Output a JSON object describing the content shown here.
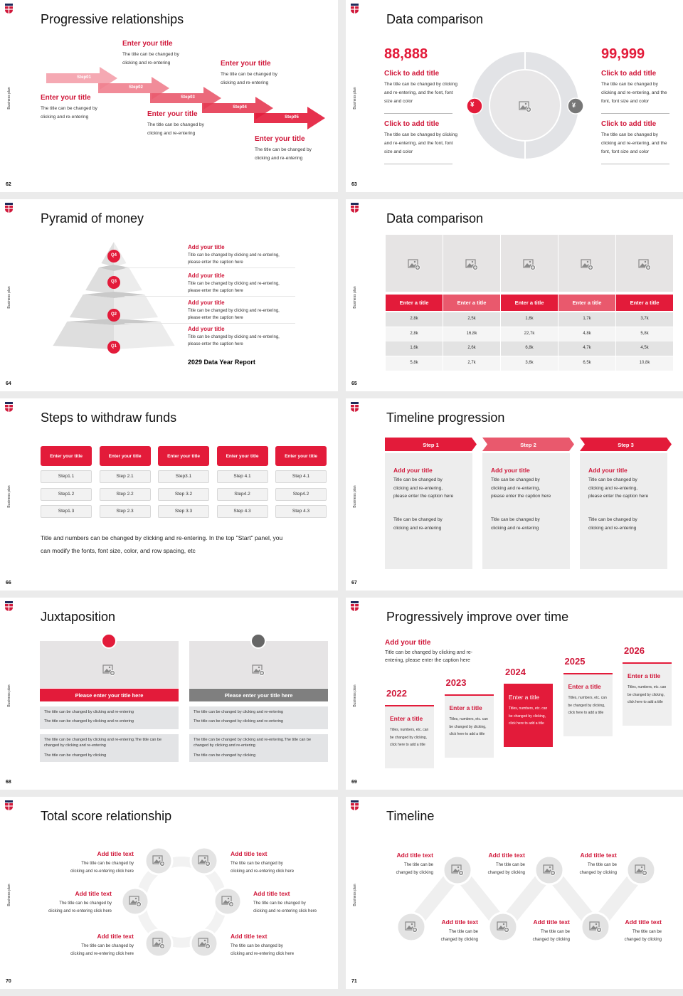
{
  "common": {
    "side_label": "Business plan"
  },
  "colors": {
    "red": "#e31b3a",
    "title_red": "#d0183a",
    "gray": "#7f7f7f",
    "panel": "#ededed"
  },
  "slides": [
    {
      "page": "62",
      "title": "Progressive relationships",
      "steps": [
        "Step01",
        "Step02",
        "Step03",
        "Step04",
        "Step05"
      ],
      "items": [
        {
          "title": "Enter your title",
          "desc": [
            "The title can be changed by",
            "clicking and re-entering"
          ]
        },
        {
          "title": "Enter your title",
          "desc": [
            "The title can be changed by",
            "clicking and re-entering"
          ]
        },
        {
          "title": "Enter your title",
          "desc": [
            "The title can be changed by",
            "clicking and re-entering"
          ]
        },
        {
          "title": "Enter your title",
          "desc": [
            "The title can be changed by",
            "clicking and re-entering"
          ]
        },
        {
          "title": "Enter your title",
          "desc": [
            "The title can be changed by",
            "clicking and re-entering"
          ]
        }
      ]
    },
    {
      "page": "63",
      "title": "Data comparison",
      "left": {
        "value": "88,888",
        "items": [
          {
            "title": "Click to add title",
            "desc": [
              "The title can be changed by clicking",
              "and re-entering, and the font, font",
              "size and color"
            ]
          },
          {
            "title": "Click to add title",
            "desc": [
              "The title can be changed by clicking",
              "and re-entering, and the font, font",
              "size and color"
            ]
          }
        ]
      },
      "right": {
        "value": "99,999",
        "items": [
          {
            "title": "Click to add title",
            "desc": [
              "The title can be changed by",
              "clicking and re-entering, and the",
              "font, font size and color"
            ]
          },
          {
            "title": "Click to add title",
            "desc": [
              "The title can be changed by",
              "clicking and re-entering, and the",
              "font, font size and color"
            ]
          }
        ]
      },
      "icons": {
        "left": "yen-hand-icon",
        "right": "money-bag-icon",
        "left_glyph": "¥",
        "right_glyph": "¥"
      }
    },
    {
      "page": "64",
      "title": "Pyramid of money",
      "levels": [
        "Q4",
        "Q3",
        "Q2",
        "Q1"
      ],
      "items": [
        {
          "title": "Add your title",
          "desc": [
            "Title can be changed by clicking and re-entering,",
            "please enter the caption here"
          ]
        },
        {
          "title": "Add your title",
          "desc": [
            "Title can be changed by clicking and re-entering,",
            "please enter the caption here"
          ]
        },
        {
          "title": "Add your title",
          "desc": [
            "Title can be changed by clicking and re-entering,",
            "please enter the caption here"
          ]
        },
        {
          "title": "Add your title",
          "desc": [
            "Title can be changed by clicking and re-entering,",
            "please enter the caption here"
          ]
        }
      ],
      "report": "2029 Data Year Report"
    },
    {
      "page": "65",
      "title": "Data comparison",
      "headers": [
        "Enter a title",
        "Enter a title",
        "Enter a title",
        "Enter a title",
        "Enter a title"
      ],
      "rows": [
        [
          "2,8k",
          "2,5k",
          "1,6k",
          "1,7k",
          "3,7k"
        ],
        [
          "2,8k",
          "16,8k",
          "22,7k",
          "4,8k",
          "5,8k"
        ],
        [
          "1,6k",
          "2,6k",
          "6,8k",
          "4,7k",
          "4,5k"
        ],
        [
          "5,8k",
          "2,7k",
          "3,6k",
          "6,5k",
          "10,8k"
        ]
      ]
    },
    {
      "page": "66",
      "title": "Steps to withdraw funds",
      "columns": [
        {
          "title": "Enter your title",
          "steps": [
            "Step1.1",
            "Step1.2",
            "Step1.3"
          ]
        },
        {
          "title": "Enter your title",
          "steps": [
            "Step 2.1",
            "Step 2.2",
            "Step 2.3"
          ]
        },
        {
          "title": "Enter your title",
          "steps": [
            "Step3.1",
            "Step 3.2",
            "Step 3.3"
          ]
        },
        {
          "title": "Enter your title",
          "steps": [
            "Step 4.1",
            "Step4.2",
            "Step 4.3"
          ]
        },
        {
          "title": "Enter your title",
          "steps": [
            "Step 4.1",
            "Step4.2",
            "Step 4.3"
          ]
        }
      ],
      "note": [
        "Title and numbers can be changed by clicking and re-entering. In the top \"Start\" panel, you",
        "can modify the fonts, font size, color, and row spacing, etc"
      ]
    },
    {
      "page": "67",
      "title": "Timeline progression",
      "steps": [
        {
          "label": "Step 1",
          "title": "Add your title",
          "desc": [
            "Title can be changed by",
            "clicking and re-entering,",
            "please enter the caption here"
          ],
          "desc2": [
            "Title can be changed by",
            "clicking and re-entering"
          ]
        },
        {
          "label": "Step 2",
          "title": "Add your title",
          "desc": [
            "Title can be changed by",
            "clicking and re-entering,",
            "please enter the caption here"
          ],
          "desc2": [
            "Title can be changed by",
            "clicking and re-entering"
          ]
        },
        {
          "label": "Step 3",
          "title": "Add your title",
          "desc": [
            "Title can be changed by",
            "clicking and re-entering,",
            "please enter the caption here"
          ],
          "desc2": [
            "Title can be changed by",
            "clicking and re-entering"
          ]
        }
      ]
    },
    {
      "page": "68",
      "title": "Juxtaposition",
      "panels": [
        {
          "icon": "bar-chart-icon",
          "heading": "Please enter your title here",
          "box1": [
            "The title can be changed by clicking and re-entering",
            "The title can be changed by clicking and re-entering"
          ],
          "box2": [
            "The title can be changed by clicking and re-entering.The title can be changed by clicking and re-entering",
            "The title can be changed by clicking"
          ]
        },
        {
          "icon": "clock-icon",
          "heading": "Please enter your title here",
          "box1": [
            "The title can be changed by clicking and re-entering",
            "The title can be changed by clicking and re-entering"
          ],
          "box2": [
            "The title can be changed by clicking and re-entering.The title can be changed by clicking and re-entering",
            "The title can be changed by clicking"
          ]
        }
      ]
    },
    {
      "page": "69",
      "title": "Progressively improve over time",
      "intro": {
        "title": "Add your title",
        "desc": [
          "Title can be changed by clicking and re-",
          "entering, please enter the caption here"
        ]
      },
      "years": [
        {
          "year": "2022",
          "title": "Enter a title",
          "desc": "Titles, numbers, etc. can be changed by clicking, click here to add a title",
          "highlight": false
        },
        {
          "year": "2023",
          "title": "Enter a title",
          "desc": "Titles, numbers, etc. can be changed by clicking, click here to add a title",
          "highlight": false
        },
        {
          "year": "2024",
          "title": "Enter a title",
          "desc": "Titles, numbers, etc. can be changed by clicking, click here to add a title",
          "highlight": true
        },
        {
          "year": "2025",
          "title": "Enter a title",
          "desc": "Titles, numbers, etc. can be changed by clicking, click here to add a title",
          "highlight": false
        },
        {
          "year": "2026",
          "title": "Enter a title",
          "desc": "Titles, numbers, etc. can be changed by clicking, click here to add a title",
          "highlight": false
        }
      ]
    },
    {
      "page": "70",
      "title": "Total score relationship",
      "items": [
        {
          "title": "Add title text",
          "desc": [
            "The title can be changed by",
            "clicking and re-entering click here"
          ]
        },
        {
          "title": "Add title text",
          "desc": [
            "The title can be changed by",
            "clicking and re-entering click here"
          ]
        },
        {
          "title": "Add title text",
          "desc": [
            "The title can be changed by",
            "clicking and re-entering click here"
          ]
        },
        {
          "title": "Add title text",
          "desc": [
            "The title can be changed by",
            "clicking and re-entering click here"
          ]
        },
        {
          "title": "Add title text",
          "desc": [
            "The title can be changed by",
            "clicking and re-entering click here"
          ]
        },
        {
          "title": "Add title text",
          "desc": [
            "The title can be changed by",
            "clicking and re-entering click here"
          ]
        }
      ]
    },
    {
      "page": "71",
      "title": "Timeline",
      "items": [
        {
          "title": "Add title text",
          "desc": [
            "The title can be",
            "changed by clicking"
          ]
        },
        {
          "title": "Add title text",
          "desc": [
            "The title can be",
            "changed by clicking"
          ]
        },
        {
          "title": "Add title text",
          "desc": [
            "The title can be",
            "changed by clicking"
          ]
        },
        {
          "title": "Add title text",
          "desc": [
            "The title can be",
            "changed by clicking"
          ]
        },
        {
          "title": "Add title text",
          "desc": [
            "The title can be",
            "changed by clicking"
          ]
        },
        {
          "title": "Add title text",
          "desc": [
            "The title can be",
            "changed by clicking"
          ]
        }
      ]
    }
  ]
}
